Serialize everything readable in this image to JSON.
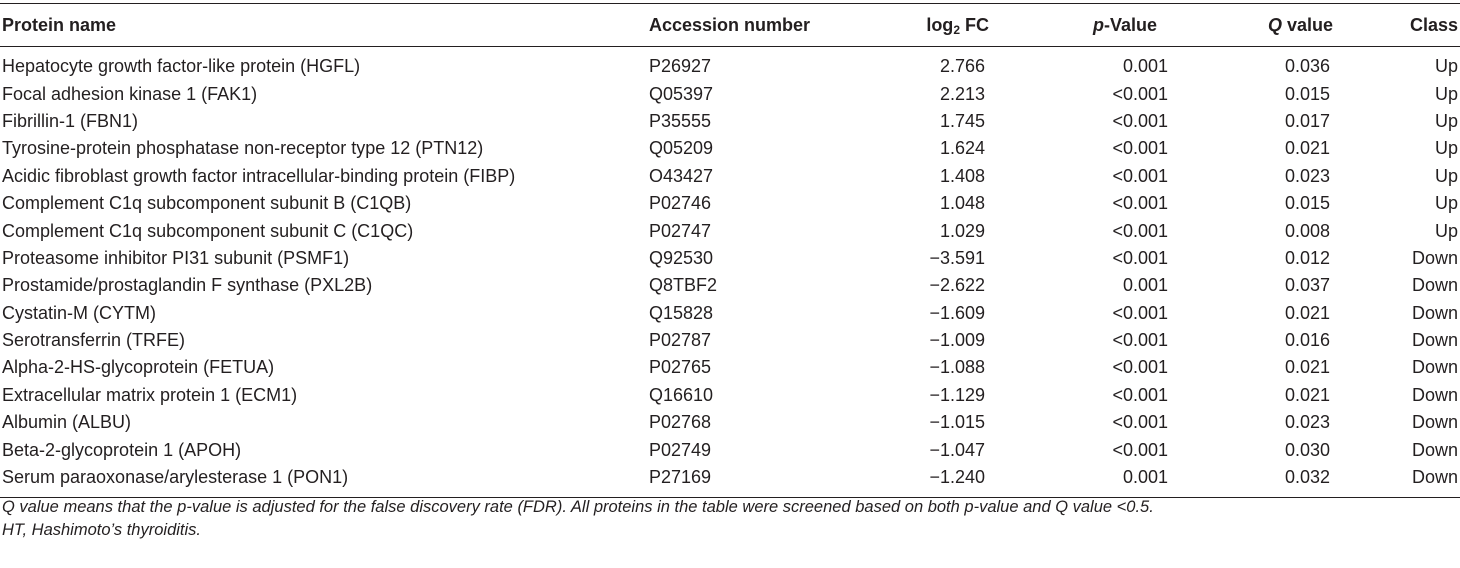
{
  "headers": {
    "protein_name": "Protein name",
    "accession": "Accession number",
    "log2fc_prefix": "log",
    "log2fc_sub": "2",
    "log2fc_suffix": " FC",
    "pvalue_italic": "p",
    "pvalue_rest": "-Value",
    "qvalue_italic": "Q",
    "qvalue_rest": " value",
    "class": "Class"
  },
  "rows": [
    {
      "name": "Hepatocyte growth factor-like protein (HGFL)",
      "accession": "P26927",
      "log2fc": "2.766",
      "p": "0.001",
      "q": "0.036",
      "class": "Up"
    },
    {
      "name": "Focal adhesion kinase 1 (FAK1)",
      "accession": "Q05397",
      "log2fc": "2.213",
      "p": "<0.001",
      "q": "0.015",
      "class": "Up"
    },
    {
      "name": "Fibrillin-1 (FBN1)",
      "accession": "P35555",
      "log2fc": "1.745",
      "p": "<0.001",
      "q": "0.017",
      "class": "Up"
    },
    {
      "name": "Tyrosine-protein phosphatase non-receptor type 12 (PTN12)",
      "accession": "Q05209",
      "log2fc": "1.624",
      "p": "<0.001",
      "q": "0.021",
      "class": "Up"
    },
    {
      "name": "Acidic fibroblast growth factor intracellular-binding protein (FIBP)",
      "accession": "O43427",
      "log2fc": "1.408",
      "p": "<0.001",
      "q": "0.023",
      "class": "Up"
    },
    {
      "name": "Complement C1q subcomponent subunit B (C1QB)",
      "accession": "P02746",
      "log2fc": "1.048",
      "p": "<0.001",
      "q": "0.015",
      "class": "Up"
    },
    {
      "name": "Complement C1q subcomponent subunit C (C1QC)",
      "accession": "P02747",
      "log2fc": "1.029",
      "p": "<0.001",
      "q": "0.008",
      "class": "Up"
    },
    {
      "name": "Proteasome inhibitor PI31 subunit (PSMF1)",
      "accession": "Q92530",
      "log2fc": "−3.591",
      "p": "<0.001",
      "q": "0.012",
      "class": "Down"
    },
    {
      "name": "Prostamide/prostaglandin F synthase (PXL2B)",
      "accession": "Q8TBF2",
      "log2fc": "−2.622",
      "p": "0.001",
      "q": "0.037",
      "class": "Down"
    },
    {
      "name": "Cystatin-M (CYTM)",
      "accession": "Q15828",
      "log2fc": "−1.609",
      "p": "<0.001",
      "q": "0.021",
      "class": "Down"
    },
    {
      "name": "Serotransferrin (TRFE)",
      "accession": "P02787",
      "log2fc": "−1.009",
      "p": "<0.001",
      "q": "0.016",
      "class": "Down"
    },
    {
      "name": "Alpha-2-HS-glycoprotein (FETUA)",
      "accession": "P02765",
      "log2fc": "−1.088",
      "p": "<0.001",
      "q": "0.021",
      "class": "Down"
    },
    {
      "name": "Extracellular matrix protein 1 (ECM1)",
      "accession": "Q16610",
      "log2fc": "−1.129",
      "p": "<0.001",
      "q": "0.021",
      "class": "Down"
    },
    {
      "name": "Albumin (ALBU)",
      "accession": "P02768",
      "log2fc": "−1.015",
      "p": "<0.001",
      "q": "0.023",
      "class": "Down"
    },
    {
      "name": "Beta-2-glycoprotein 1 (APOH)",
      "accession": "P02749",
      "log2fc": "−1.047",
      "p": "<0.001",
      "q": "0.030",
      "class": "Down"
    },
    {
      "name": "Serum paraoxonase/arylesterase 1 (PON1)",
      "accession": "P27169",
      "log2fc": "−1.240",
      "p": "0.001",
      "q": "0.032",
      "class": "Down"
    }
  ],
  "footnotes": [
    "Q value means that the p-value is adjusted for the false discovery rate (FDR). All proteins in the table were screened based on both p-value and Q value <0.5.",
    "HT, Hashimoto’s thyroiditis."
  ]
}
